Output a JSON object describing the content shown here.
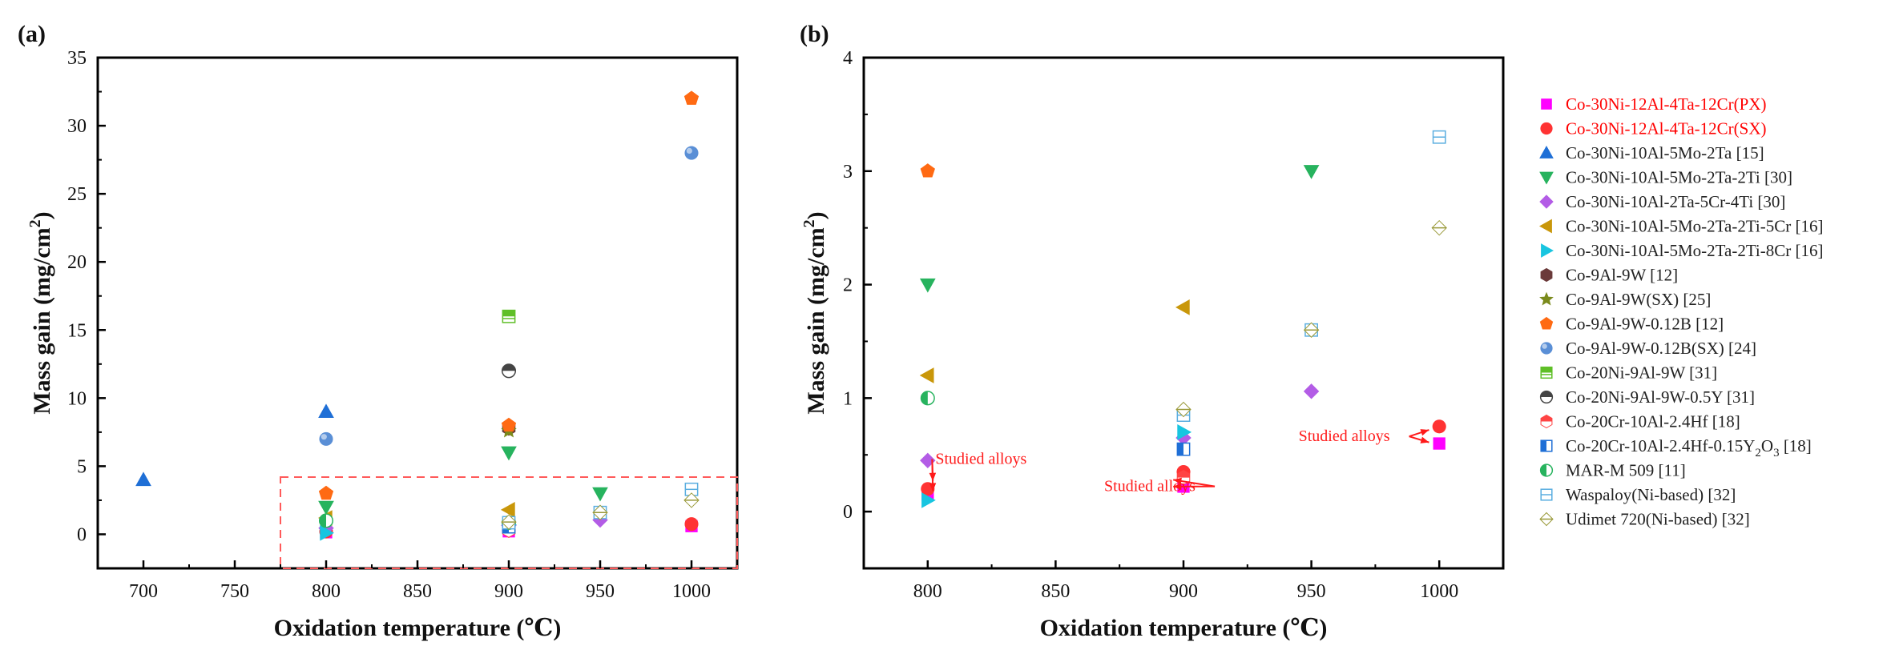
{
  "chart_data": [
    {
      "panel_label": "(a)",
      "type": "scatter",
      "xlabel": "Oxidation temperature (℃)",
      "ylabel_main": "Mass gain (mg/cm",
      "ylabel_sup": "2",
      "ylabel_end": ")",
      "xlim": [
        675,
        1025
      ],
      "ylim": [
        -2.5,
        35
      ],
      "xticks": [
        700,
        750,
        800,
        850,
        900,
        950,
        1000
      ],
      "yticks": [
        0,
        5,
        10,
        15,
        20,
        25,
        30,
        35
      ],
      "zoom_box": {
        "x": [
          775,
          1025
        ],
        "y": [
          -2.5,
          4.2
        ],
        "color": "#ff5a5a"
      },
      "series": [
        {
          "id": "s1",
          "points": [
            [
              800,
              0.15
            ],
            [
              900,
              0.22
            ],
            [
              1000,
              0.6
            ]
          ]
        },
        {
          "id": "s2",
          "points": [
            [
              800,
              0.2
            ],
            [
              900,
              0.35
            ],
            [
              1000,
              0.75
            ]
          ]
        },
        {
          "id": "s3",
          "points": [
            [
              700,
              4.0
            ],
            [
              800,
              9.0
            ]
          ]
        },
        {
          "id": "s4",
          "points": [
            [
              800,
              2.0
            ],
            [
              900,
              6.0
            ],
            [
              950,
              3.0
            ]
          ]
        },
        {
          "id": "s5",
          "points": [
            [
              800,
              0.45
            ],
            [
              900,
              0.65
            ],
            [
              950,
              1.05
            ]
          ]
        },
        {
          "id": "s6",
          "points": [
            [
              800,
              1.2
            ],
            [
              900,
              1.8
            ]
          ]
        },
        {
          "id": "s7",
          "points": [
            [
              800,
              0.1
            ],
            [
              900,
              0.7
            ]
          ]
        },
        {
          "id": "s8",
          "points": [
            [
              900,
              7.8
            ]
          ]
        },
        {
          "id": "s9",
          "points": [
            [
              900,
              7.6
            ]
          ]
        },
        {
          "id": "s10",
          "points": [
            [
              800,
              3.0
            ],
            [
              900,
              8.0
            ],
            [
              1000,
              32.0
            ]
          ]
        },
        {
          "id": "s11",
          "points": [
            [
              800,
              7.0
            ],
            [
              1000,
              28.0
            ]
          ]
        },
        {
          "id": "s12",
          "points": [
            [
              900,
              16.0
            ]
          ]
        },
        {
          "id": "s13",
          "points": [
            [
              900,
              12.0
            ]
          ]
        },
        {
          "id": "s14",
          "points": [
            [
              900,
              0.3
            ]
          ]
        },
        {
          "id": "s15",
          "points": [
            [
              900,
              0.55
            ]
          ]
        },
        {
          "id": "s16",
          "points": [
            [
              800,
              1.0
            ],
            [
              900,
              0.85
            ]
          ]
        },
        {
          "id": "s17",
          "points": [
            [
              900,
              0.85
            ],
            [
              950,
              1.6
            ],
            [
              1000,
              3.3
            ]
          ]
        },
        {
          "id": "s18",
          "points": [
            [
              900,
              0.9
            ],
            [
              950,
              1.6
            ],
            [
              1000,
              2.5
            ]
          ]
        }
      ]
    },
    {
      "panel_label": "(b)",
      "type": "scatter",
      "xlabel": "Oxidation temperature (℃)",
      "ylabel_main": "Mass gain (mg/cm",
      "ylabel_sup": "2",
      "ylabel_end": ")",
      "xlim": [
        775,
        1025
      ],
      "ylim": [
        -0.5,
        4
      ],
      "xticks": [
        800,
        850,
        900,
        950,
        1000
      ],
      "yticks": [
        0,
        1,
        2,
        3,
        4
      ],
      "annotations": [
        {
          "text": "Studied alloys",
          "anchor": [
            803,
            0.42
          ],
          "targets": [
            [
              802,
              0.27
            ],
            [
              802,
              0.18
            ]
          ]
        },
        {
          "text": "Studied alloys",
          "anchor": [
            869,
            0.18
          ],
          "targets": [
            [
              896,
              0.28
            ],
            [
              896,
              0.22
            ]
          ]
        },
        {
          "text": "Studied alloys",
          "anchor": [
            945,
            0.62
          ],
          "targets": [
            [
              996,
              0.72
            ],
            [
              996,
              0.61
            ]
          ]
        }
      ],
      "series": [
        {
          "id": "s1",
          "points": [
            [
              800,
              0.15
            ],
            [
              900,
              0.22
            ],
            [
              1000,
              0.6
            ]
          ]
        },
        {
          "id": "s2",
          "points": [
            [
              800,
              0.2
            ],
            [
              900,
              0.35
            ],
            [
              1000,
              0.75
            ]
          ]
        },
        {
          "id": "s4",
          "points": [
            [
              800,
              2.0
            ],
            [
              950,
              3.0
            ]
          ]
        },
        {
          "id": "s5",
          "points": [
            [
              800,
              0.45
            ],
            [
              900,
              0.65
            ],
            [
              950,
              1.06
            ]
          ]
        },
        {
          "id": "s6",
          "points": [
            [
              800,
              1.2
            ],
            [
              900,
              1.8
            ]
          ]
        },
        {
          "id": "s7",
          "points": [
            [
              800,
              0.1
            ],
            [
              900,
              0.7
            ]
          ]
        },
        {
          "id": "s10",
          "points": [
            [
              800,
              3.0
            ]
          ]
        },
        {
          "id": "s14",
          "points": [
            [
              900,
              0.3
            ]
          ]
        },
        {
          "id": "s15",
          "points": [
            [
              900,
              0.55
            ]
          ]
        },
        {
          "id": "s16",
          "points": [
            [
              800,
              1.0
            ]
          ]
        },
        {
          "id": "s17",
          "points": [
            [
              900,
              0.85
            ],
            [
              950,
              1.6
            ],
            [
              1000,
              3.3
            ]
          ]
        },
        {
          "id": "s18",
          "points": [
            [
              900,
              0.9
            ],
            [
              950,
              1.6
            ],
            [
              1000,
              2.5
            ]
          ]
        }
      ]
    }
  ],
  "legend": [
    {
      "id": "s1",
      "label": "Co-30Ni-12Al-4Ta-12Cr(PX)",
      "color": "#ff00ff",
      "marker": "square",
      "label_color": "#ff0000"
    },
    {
      "id": "s2",
      "label": "Co-30Ni-12Al-4Ta-12Cr(SX)",
      "color": "#ff3333",
      "marker": "circle",
      "label_color": "#ff0000"
    },
    {
      "id": "s3",
      "label": "Co-30Ni-10Al-5Mo-2Ta [15]",
      "color": "#1f6fd6",
      "marker": "triangle-up",
      "label_color": "#222222"
    },
    {
      "id": "s4",
      "label": "Co-30Ni-10Al-5Mo-2Ta-2Ti [30]",
      "color": "#27b35e",
      "marker": "triangle-down",
      "label_color": "#222222"
    },
    {
      "id": "s5",
      "label": "Co-30Ni-10Al-2Ta-5Cr-4Ti [30]",
      "color": "#b35ce6",
      "marker": "diamond",
      "label_color": "#222222"
    },
    {
      "id": "s6",
      "label": "Co-30Ni-10Al-5Mo-2Ta-2Ti-5Cr [16]",
      "color": "#c9970a",
      "marker": "triangle-left",
      "label_color": "#222222"
    },
    {
      "id": "s7",
      "label": "Co-30Ni-10Al-5Mo-2Ta-2Ti-8Cr [16]",
      "color": "#18c5e0",
      "marker": "triangle-right",
      "label_color": "#222222"
    },
    {
      "id": "s8",
      "label": "Co-9Al-9W [12]",
      "color": "#6b3a3a",
      "marker": "hexagon",
      "label_color": "#222222"
    },
    {
      "id": "s9",
      "label": "Co-9Al-9W(SX) [25]",
      "color": "#7a8a1c",
      "marker": "star",
      "label_color": "#222222"
    },
    {
      "id": "s10",
      "label": "Co-9Al-9W-0.12B [12]",
      "color": "#ff6a13",
      "marker": "pentagon",
      "label_color": "#222222"
    },
    {
      "id": "s11",
      "label": "Co-9Al-9W-0.12B(SX) [24]",
      "color": "#5a8fd6",
      "marker": "sphere",
      "label_color": "#222222"
    },
    {
      "id": "s12",
      "label": "Co-20Ni-9Al-9W [31]",
      "color": "#5fbf27",
      "marker": "square-half-h",
      "label_color": "#222222"
    },
    {
      "id": "s13",
      "label": "Co-20Ni-9Al-9W-0.5Y [31]",
      "color": "#444444",
      "marker": "circle-half-top",
      "label_color": "#222222"
    },
    {
      "id": "s14",
      "label": "Co-20Cr-10Al-2.4Hf [18]",
      "color": "#ff4444",
      "marker": "hexagon-half",
      "label_color": "#222222"
    },
    {
      "id": "s15",
      "label_main": "Co-20Cr-10Al-2.4Hf-0.15Y",
      "label_sub": "2",
      "label_mid": "O",
      "label_sub2": "3",
      "label_tail": " [18]",
      "color": "#1f6fd6",
      "marker": "square-half-v",
      "label_color": "#222222"
    },
    {
      "id": "s16",
      "label": "MAR-M 509 [11]",
      "color": "#27b35e",
      "marker": "circle-half-v",
      "label_color": "#222222"
    },
    {
      "id": "s17",
      "label": "Waspaloy(Ni-based) [32]",
      "color": "#5aaee0",
      "marker": "square-open-line",
      "label_color": "#222222"
    },
    {
      "id": "s18",
      "label": "Udimet 720(Ni-based) [32]",
      "color": "#9a9a3a",
      "marker": "diamond-open-line",
      "label_color": "#222222"
    }
  ]
}
